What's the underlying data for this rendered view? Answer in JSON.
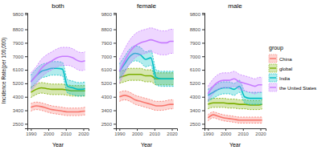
{
  "chart_data": [
    {
      "type": "line",
      "title": "both",
      "xlabel": "Year",
      "ylabel": "Incidence Rate(per 100,000)",
      "x": [
        1990,
        1993,
        1996,
        1999,
        2002,
        2005,
        2008,
        2011,
        2014,
        2017,
        2019,
        2021
      ],
      "xlim": [
        1988,
        2023
      ],
      "xticks": [
        1990,
        2000,
        2010,
        2020
      ],
      "ylim": [
        2200,
        9900
      ],
      "yticks": [
        2500,
        3400,
        4300,
        5200,
        6100,
        7000,
        7900,
        8800,
        9800
      ],
      "series": [
        {
          "name": "China",
          "color": "#F8766D",
          "values": [
            3600,
            3700,
            3650,
            3550,
            3450,
            3400,
            3350,
            3300,
            3300,
            3300,
            3320,
            3350
          ],
          "lower": [
            3350,
            3450,
            3400,
            3300,
            3200,
            3150,
            3100,
            3050,
            3050,
            3050,
            3070,
            3100
          ],
          "upper": [
            3850,
            3950,
            3900,
            3800,
            3700,
            3650,
            3600,
            3550,
            3550,
            3550,
            3570,
            3600
          ]
        },
        {
          "name": "global",
          "color": "#7CAE00",
          "values": [
            4600,
            4800,
            4900,
            4850,
            4800,
            4800,
            4800,
            4750,
            4700,
            4700,
            4700,
            4700
          ],
          "lower": [
            4250,
            4450,
            4550,
            4500,
            4450,
            4450,
            4450,
            4400,
            4350,
            4350,
            4350,
            4350
          ],
          "upper": [
            4950,
            5150,
            5250,
            5200,
            5150,
            5150,
            5150,
            5100,
            5050,
            5050,
            5050,
            5050
          ]
        },
        {
          "name": "India",
          "color": "#00BFC4",
          "values": [
            5300,
            5700,
            6000,
            6100,
            6200,
            6200,
            6150,
            5000,
            4900,
            4800,
            4800,
            4850
          ],
          "lower": [
            4850,
            5250,
            5550,
            5650,
            5750,
            5750,
            5700,
            4550,
            4450,
            4350,
            4350,
            4400
          ],
          "upper": [
            5750,
            6150,
            6450,
            6550,
            6650,
            6650,
            6600,
            5450,
            5350,
            5250,
            5250,
            5300
          ]
        },
        {
          "name": "the United States",
          "color": "#C77CFF",
          "values": [
            5300,
            5700,
            6200,
            6500,
            6700,
            6900,
            7000,
            7000,
            6900,
            6700,
            6650,
            6700
          ],
          "lower": [
            4700,
            5100,
            5600,
            5900,
            6100,
            6300,
            6400,
            6400,
            6300,
            6100,
            6050,
            6100
          ],
          "upper": [
            5900,
            6300,
            6800,
            7100,
            7300,
            7500,
            7600,
            7600,
            7500,
            7300,
            7250,
            7300
          ]
        }
      ]
    },
    {
      "type": "line",
      "title": "female",
      "xlabel": "Year",
      "x": [
        1990,
        1993,
        1996,
        1999,
        2002,
        2005,
        2008,
        2011,
        2014,
        2017,
        2019,
        2021
      ],
      "xlim": [
        1988,
        2023
      ],
      "xticks": [
        1990,
        2000,
        2010,
        2020
      ],
      "ylim": [
        2200,
        9900
      ],
      "yticks": [
        2500,
        3400,
        4300,
        5200,
        6100,
        7000,
        7900,
        8800,
        9800
      ],
      "series": [
        {
          "name": "China",
          "color": "#F8766D",
          "values": [
            4300,
            4400,
            4300,
            4100,
            4000,
            3900,
            3800,
            3700,
            3700,
            3750,
            3800,
            3800
          ],
          "lower": [
            4000,
            4100,
            4000,
            3800,
            3700,
            3600,
            3500,
            3400,
            3400,
            3450,
            3500,
            3500
          ],
          "upper": [
            4600,
            4700,
            4600,
            4400,
            4300,
            4200,
            4100,
            4000,
            4000,
            4050,
            4100,
            4100
          ]
        },
        {
          "name": "global",
          "color": "#7CAE00",
          "values": [
            5600,
            5700,
            5800,
            5800,
            5800,
            5700,
            5700,
            5500,
            5500,
            5500,
            5500,
            5500
          ],
          "lower": [
            5200,
            5300,
            5400,
            5400,
            5400,
            5300,
            5300,
            5100,
            5100,
            5100,
            5100,
            5100
          ],
          "upper": [
            6000,
            6100,
            6200,
            6200,
            6200,
            6100,
            6100,
            5900,
            5900,
            5900,
            5900,
            5900
          ]
        },
        {
          "name": "India",
          "color": "#00BFC4",
          "values": [
            6000,
            6500,
            7000,
            7200,
            7100,
            6800,
            6900,
            5600,
            5500,
            5500,
            5500,
            5500
          ],
          "lower": [
            5500,
            6000,
            6500,
            6700,
            6600,
            6300,
            6400,
            5100,
            5000,
            5000,
            5000,
            5000
          ],
          "upper": [
            6500,
            7000,
            7500,
            7700,
            7600,
            7300,
            7400,
            6100,
            6000,
            6000,
            6000,
            6000
          ]
        },
        {
          "name": "the United States",
          "color": "#C77CFF",
          "values": [
            6000,
            6700,
            7300,
            7700,
            7900,
            8000,
            8100,
            8000,
            7900,
            7900,
            8000,
            8000
          ],
          "lower": [
            5200,
            5900,
            6500,
            6900,
            7100,
            7200,
            7300,
            7200,
            7100,
            7100,
            7200,
            7200
          ],
          "upper": [
            6800,
            7500,
            8100,
            8500,
            8700,
            8800,
            8900,
            8800,
            8700,
            8700,
            8800,
            8800
          ]
        }
      ]
    },
    {
      "type": "line",
      "title": "male",
      "xlabel": "Year",
      "legend": "right",
      "legend_title": "group",
      "x": [
        1990,
        1993,
        1996,
        1999,
        2002,
        2005,
        2008,
        2011,
        2014,
        2017,
        2019,
        2021
      ],
      "xlim": [
        1988,
        2023
      ],
      "xticks": [
        1990,
        2000,
        2010,
        2020
      ],
      "ylim": [
        2200,
        9900
      ],
      "yticks": [
        2500,
        3400,
        4300,
        5200,
        6100,
        7000,
        7900,
        8800,
        9800
      ],
      "series": [
        {
          "name": "China",
          "color": "#F8766D",
          "values": [
            2900,
            3100,
            3000,
            2900,
            2850,
            2800,
            2750,
            2750,
            2750,
            2750,
            2750,
            2750
          ],
          "lower": [
            2700,
            2900,
            2800,
            2700,
            2650,
            2600,
            2550,
            2550,
            2550,
            2550,
            2550,
            2550
          ],
          "upper": [
            3100,
            3300,
            3200,
            3100,
            3050,
            3000,
            2950,
            2950,
            2950,
            2950,
            2950,
            2950
          ]
        },
        {
          "name": "global",
          "color": "#7CAE00",
          "values": [
            3800,
            3900,
            3900,
            3900,
            3850,
            3850,
            3800,
            3800,
            3750,
            3750,
            3750,
            3800
          ],
          "lower": [
            3500,
            3600,
            3600,
            3600,
            3550,
            3550,
            3500,
            3500,
            3450,
            3450,
            3450,
            3500
          ],
          "upper": [
            4100,
            4200,
            4200,
            4200,
            4150,
            4150,
            4100,
            4100,
            4050,
            4050,
            4050,
            4100
          ]
        },
        {
          "name": "India",
          "color": "#00BFC4",
          "values": [
            4400,
            4600,
            4800,
            4900,
            4900,
            4800,
            5000,
            4300,
            4200,
            4200,
            4200,
            4200
          ],
          "lower": [
            4000,
            4200,
            4400,
            4500,
            4500,
            4400,
            4600,
            3900,
            3800,
            3800,
            3800,
            3800
          ],
          "upper": [
            4800,
            5000,
            5200,
            5300,
            5300,
            5200,
            5400,
            4700,
            4600,
            4600,
            4600,
            4600
          ]
        },
        {
          "name": "the United States",
          "color": "#C77CFF",
          "values": [
            4500,
            5000,
            5300,
            5400,
            5400,
            5500,
            5300,
            5200,
            5100,
            5000,
            5100,
            5100
          ],
          "lower": [
            4000,
            4500,
            4800,
            4900,
            4900,
            5000,
            4800,
            4700,
            4600,
            4500,
            4600,
            4600
          ],
          "upper": [
            5000,
            5500,
            5800,
            5900,
            5900,
            6000,
            5800,
            5700,
            5600,
            5500,
            5600,
            5600
          ]
        }
      ]
    }
  ]
}
